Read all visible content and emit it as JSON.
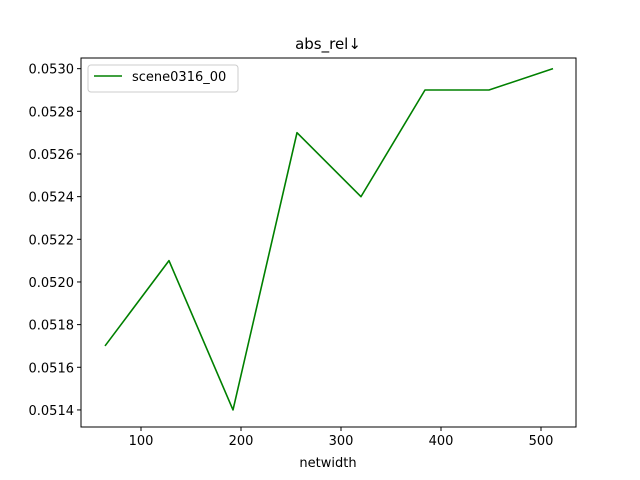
{
  "colors": {
    "series": "#008000",
    "axis": "#000000",
    "legend_border": "#cccccc",
    "background": "#ffffff"
  },
  "chart_data": {
    "type": "line",
    "title": "abs_rel↓",
    "xlabel": "netwidth",
    "ylabel": "",
    "xlim": [
      40,
      535
    ],
    "ylim": [
      0.05132,
      0.05305
    ],
    "xticks": [
      100,
      200,
      300,
      400,
      500
    ],
    "xtick_labels": [
      "100",
      "200",
      "300",
      "400",
      "500"
    ],
    "yticks": [
      0.0514,
      0.0516,
      0.0518,
      0.052,
      0.0522,
      0.0524,
      0.0526,
      0.0528,
      0.053
    ],
    "ytick_labels": [
      "0.0514",
      "0.0516",
      "0.0518",
      "0.0520",
      "0.0522",
      "0.0524",
      "0.0526",
      "0.0528",
      "0.0530"
    ],
    "grid": false,
    "legend_position": "top-left",
    "series": [
      {
        "name": "scene0316_00",
        "color": "#008000",
        "x": [
          64,
          128,
          192,
          256,
          320,
          384,
          448,
          512
        ],
        "y": [
          0.0517,
          0.0521,
          0.0514,
          0.0527,
          0.0524,
          0.0529,
          0.0529,
          0.053
        ]
      }
    ]
  }
}
